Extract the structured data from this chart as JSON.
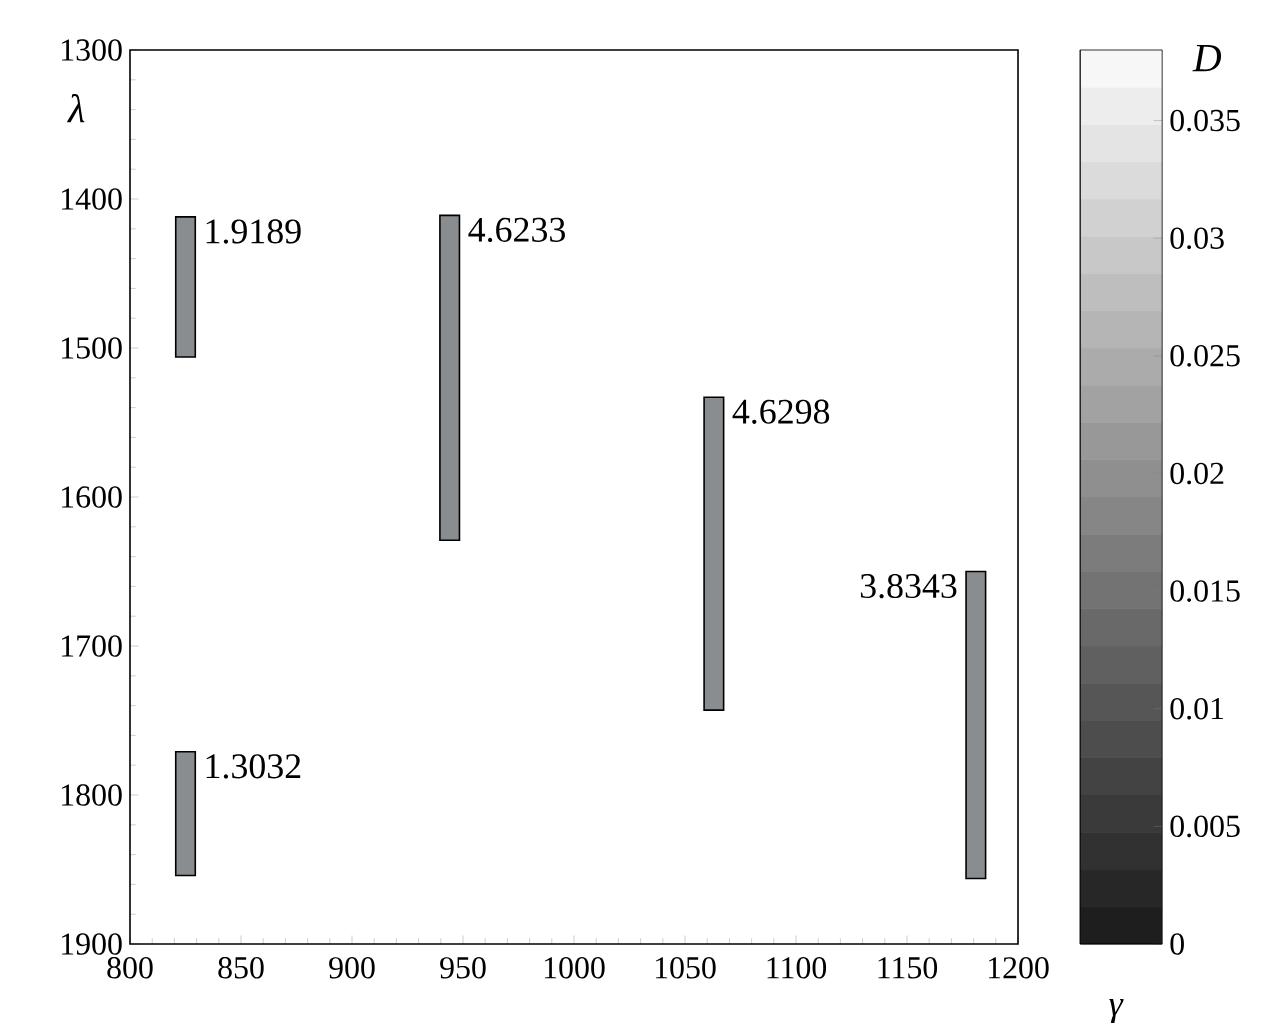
{
  "chart_data": {
    "type": "bar",
    "series": [
      {
        "x": [
          825,
          944,
          1063,
          1181
        ],
        "base": [
          1412,
          1411,
          1533,
          1650
        ],
        "values": [
          94,
          218,
          210,
          206
        ],
        "color": "#8a8d90"
      },
      {
        "x": [
          825
        ],
        "base": [
          1771
        ],
        "values": [
          83
        ],
        "color": "#8a8d90"
      }
    ],
    "xlabel": "γ",
    "ylabel": "λ",
    "clabel": "D",
    "xlim": [
      800,
      1200
    ],
    "xticks": [
      800,
      850,
      900,
      950,
      1000,
      1050,
      1100,
      1150,
      1200
    ],
    "ylim": [
      1900,
      1300
    ],
    "yticks": [
      1300,
      1400,
      1500,
      1600,
      1700,
      1800,
      1900
    ],
    "clim": [
      0,
      0.038
    ],
    "cticks": [
      0,
      0.005,
      0.01,
      0.015,
      0.02,
      0.025,
      0.03,
      0.035
    ],
    "annotations": [
      {
        "text": "1.9189",
        "x": 825,
        "y": 1412
      },
      {
        "text": "1.3032",
        "x": 825,
        "y": 1771
      },
      {
        "text": "4.6233",
        "x": 944,
        "y": 1411
      },
      {
        "text": "4.6298",
        "x": 1063,
        "y": 1533
      },
      {
        "text": "3.8343",
        "x": 1181,
        "y": 1650
      }
    ]
  }
}
